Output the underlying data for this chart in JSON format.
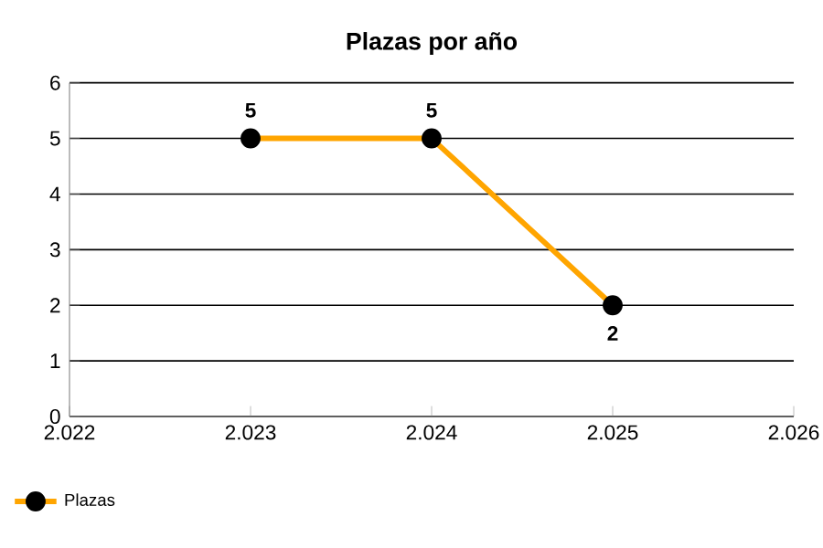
{
  "chart_data": {
    "type": "line",
    "title": "Plazas por año",
    "x": [
      2023,
      2024,
      2025
    ],
    "series": [
      {
        "name": "Plazas",
        "color": "#ffa500",
        "values": [
          5,
          5,
          2
        ]
      }
    ],
    "xlim": [
      2022,
      2026
    ],
    "xticks": [
      {
        "value": 2022,
        "label": "2.022"
      },
      {
        "value": 2023,
        "label": "2.023"
      },
      {
        "value": 2024,
        "label": "2.024"
      },
      {
        "value": 2025,
        "label": "2.025"
      },
      {
        "value": 2026,
        "label": "2.026"
      }
    ],
    "ylim": [
      0,
      6
    ],
    "yticks": [
      0,
      1,
      2,
      3,
      4,
      5,
      6
    ],
    "grid": "y",
    "legend": "bottom left",
    "marker": "circle",
    "line_style": "solid",
    "data_labels": true
  }
}
